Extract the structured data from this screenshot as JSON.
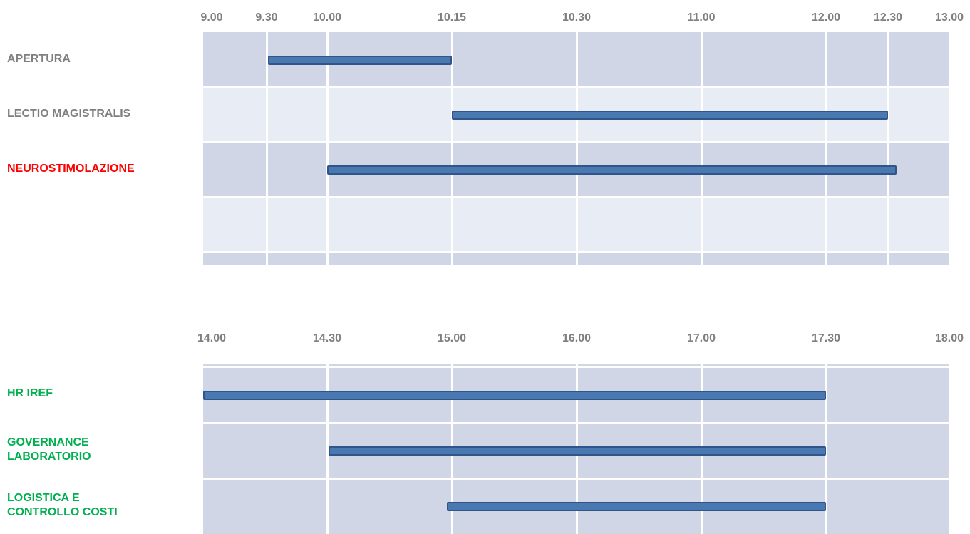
{
  "colors": {
    "label_gray": "#7f7f7f",
    "label_red": "#ff0000",
    "label_green": "#00b050",
    "band_dark": "#d0d6e6",
    "band_light": "#e8ecf4",
    "bar_fill": "#4a78b0",
    "bar_border": "#2f5589"
  },
  "chart_data": [
    {
      "type": "bar",
      "orientation": "gantt",
      "title": "",
      "xlabel": "",
      "ylabel": "",
      "grid": true,
      "tick_labels": [
        "9.00",
        "9.30",
        "10.00",
        "10.15",
        "10.30",
        "11.00",
        "12.00",
        "12.30",
        "13.00"
      ],
      "rows": [
        {
          "label": "APERTURA",
          "color": "#7f7f7f",
          "start": "9.30",
          "end": "10.15"
        },
        {
          "label": "LECTIO MAGISTRALIS",
          "color": "#7f7f7f",
          "start": "10.15",
          "end": "12.30"
        },
        {
          "label": "NEUROSTIMOLAZIONE",
          "color": "#ff0000",
          "start": "10.00",
          "end": "12.30"
        },
        {
          "label": "",
          "color": "#7f7f7f",
          "start": null,
          "end": null
        }
      ]
    },
    {
      "type": "bar",
      "orientation": "gantt",
      "title": "",
      "xlabel": "",
      "ylabel": "",
      "grid": true,
      "tick_labels": [
        "14.00",
        "14.30",
        "15.00",
        "16.00",
        "17.00",
        "17.30",
        "18.00"
      ],
      "rows": [
        {
          "label": "HR IREF",
          "color": "#00b050",
          "start": "14.00",
          "end": "17.30"
        },
        {
          "label": "GOVERNANCE LABORATORIO",
          "label_lines": [
            "GOVERNANCE",
            "LABORATORIO"
          ],
          "color": "#00b050",
          "start": "14.30",
          "end": "17.30"
        },
        {
          "label": "LOGISTICA E CONTROLLO COSTI",
          "label_lines": [
            "LOGISTICA E",
            "CONTROLLO COSTI"
          ],
          "color": "#00b050",
          "start": "15.00",
          "end": "17.30"
        }
      ]
    }
  ]
}
